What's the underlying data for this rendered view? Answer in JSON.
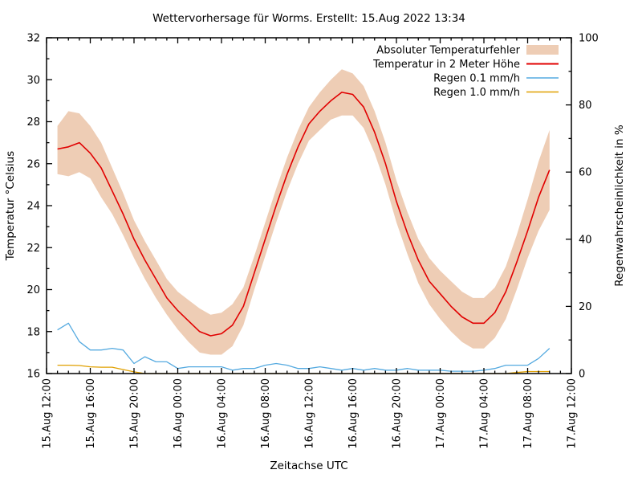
{
  "page": {
    "background": "#ffffff",
    "text_color": "#000000"
  },
  "chart_data": {
    "type": "line",
    "title": "Wettervorhersage für Worms. Erstellt: 15.Aug 2022 13:34",
    "xlabel": "Zeitachse UTC",
    "ylabel_left": "Temperatur °Celsius",
    "ylabel_right": "Regenwahrscheinlichkeit in %",
    "grid": false,
    "legend_position": "top-right-inside",
    "x_axis": {
      "hours_total": 48,
      "major_tick_hours": 4,
      "minor_tick_hours": 1,
      "tick_labels": [
        "15.Aug 12:00",
        "15.Aug 16:00",
        "15.Aug 20:00",
        "16.Aug 00:00",
        "16.Aug 04:00",
        "16.Aug 08:00",
        "16.Aug 12:00",
        "16.Aug 16:00",
        "16.Aug 20:00",
        "17.Aug 00:00",
        "17.Aug 04:00",
        "17.Aug 08:00",
        "17.Aug 12:00"
      ]
    },
    "y_left_axis": {
      "min": 16,
      "max": 32,
      "ticks": [
        16,
        18,
        20,
        22,
        24,
        26,
        28,
        30,
        32
      ],
      "minor_step": 1
    },
    "y_right_axis": {
      "min": 0,
      "max": 100,
      "ticks": [
        0,
        20,
        40,
        60,
        80,
        100
      ],
      "minor_step": 10
    },
    "sample_start_offset_hours": 1,
    "sample_step_hours": 1,
    "series": [
      {
        "name": "Absoluter Temperaturfehler",
        "type": "band",
        "axis": "left",
        "color": "#eecdb5",
        "upper": [
          27.8,
          28.5,
          28.4,
          27.8,
          27.0,
          25.8,
          24.6,
          23.3,
          22.3,
          21.4,
          20.5,
          19.9,
          19.5,
          19.1,
          18.8,
          18.9,
          19.3,
          20.1,
          21.6,
          23.2,
          24.8,
          26.3,
          27.6,
          28.7,
          29.4,
          30.0,
          30.5,
          30.3,
          29.7,
          28.5,
          27.0,
          25.2,
          23.7,
          22.4,
          21.5,
          20.9,
          20.4,
          19.9,
          19.6,
          19.6,
          20.1,
          21.1,
          22.6,
          24.3,
          26.1,
          27.6
        ],
        "lower": [
          25.5,
          25.4,
          25.6,
          25.3,
          24.4,
          23.6,
          22.6,
          21.5,
          20.5,
          19.6,
          18.8,
          18.1,
          17.5,
          17.0,
          16.9,
          16.9,
          17.3,
          18.3,
          20.0,
          21.6,
          23.2,
          24.7,
          26.0,
          27.1,
          27.6,
          28.1,
          28.3,
          28.3,
          27.7,
          26.5,
          25.0,
          23.2,
          21.7,
          20.3,
          19.3,
          18.6,
          18.0,
          17.5,
          17.2,
          17.2,
          17.7,
          18.6,
          20.0,
          21.5,
          22.8,
          23.8
        ]
      },
      {
        "name": "Temperatur in 2 Meter Höhe",
        "type": "line",
        "axis": "left",
        "color": "#e10000",
        "values": [
          26.7,
          26.8,
          27.0,
          26.5,
          25.8,
          24.7,
          23.6,
          22.4,
          21.4,
          20.5,
          19.6,
          19.0,
          18.5,
          18.0,
          17.8,
          17.9,
          18.3,
          19.2,
          20.8,
          22.4,
          24.0,
          25.5,
          26.8,
          27.9,
          28.5,
          29.0,
          29.4,
          29.3,
          28.7,
          27.5,
          26.0,
          24.2,
          22.7,
          21.4,
          20.4,
          19.8,
          19.2,
          18.7,
          18.4,
          18.4,
          18.9,
          19.9,
          21.3,
          22.8,
          24.4,
          25.7
        ]
      },
      {
        "name": "Regen 0.1 mm/h",
        "type": "line",
        "axis": "right",
        "color": "#55aae0",
        "values": [
          13,
          15,
          9.5,
          7,
          7,
          7.5,
          7,
          3,
          5,
          3.5,
          3.5,
          1.5,
          2,
          2,
          2,
          2,
          1,
          1.5,
          1.5,
          2.5,
          3,
          2.5,
          1.5,
          1.5,
          2,
          1.5,
          1,
          1.5,
          1,
          1.5,
          1,
          1,
          1.5,
          1,
          1,
          1,
          0.7,
          0.7,
          0.7,
          1,
          1.5,
          2.5,
          2.5,
          2.5,
          4.5,
          7.5
        ]
      },
      {
        "name": "Regen 1.0 mm/h",
        "type": "line",
        "axis": "right",
        "color": "#e0a000",
        "values": [
          2.5,
          2.5,
          2.4,
          2.0,
          1.9,
          1.9,
          1.2,
          0.5,
          0,
          0,
          0,
          0,
          0,
          0,
          0,
          0,
          0,
          0,
          0,
          0,
          0,
          0,
          0,
          0,
          0,
          0,
          0,
          0,
          0,
          0,
          0,
          0,
          0,
          0,
          0,
          0,
          0,
          0,
          0,
          0,
          0,
          0,
          0.3,
          0.6,
          0.6,
          0.6
        ]
      }
    ]
  }
}
